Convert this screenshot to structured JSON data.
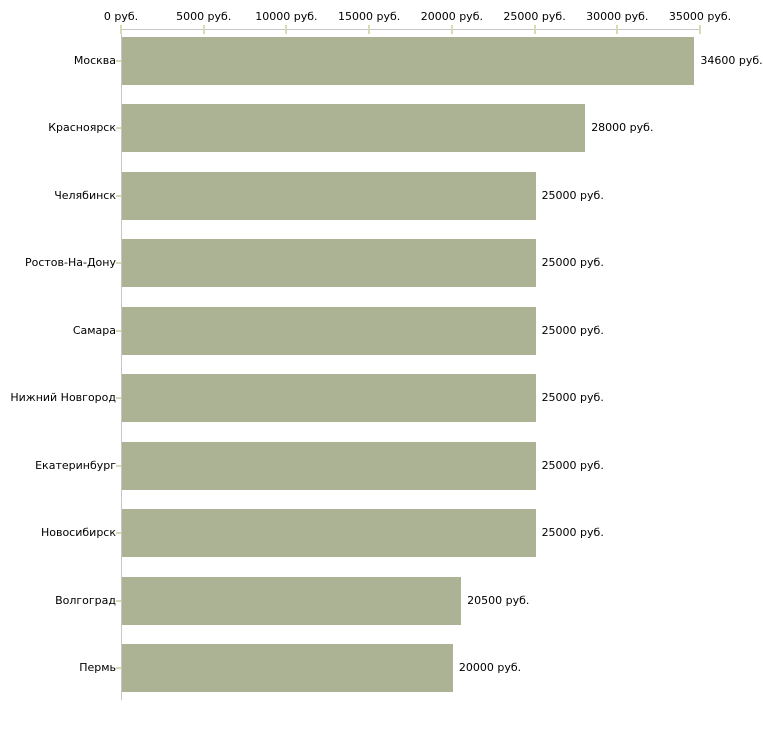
{
  "chart_data": {
    "type": "bar",
    "orientation": "horizontal",
    "categories": [
      "Москва",
      "Красноярск",
      "Челябинск",
      "Ростов-На-Дону",
      "Самара",
      "Нижний Новгород",
      "Екатеринбург",
      "Новосибирск",
      "Волгоград",
      "Пермь"
    ],
    "values": [
      34600,
      28000,
      25000,
      25000,
      25000,
      25000,
      25000,
      25000,
      20500,
      20000
    ],
    "value_labels": [
      "34600 руб.",
      "28000 руб.",
      "25000 руб.",
      "25000 руб.",
      "25000 руб.",
      "25000 руб.",
      "25000 руб.",
      "25000 руб.",
      "20500 руб.",
      "20000 руб."
    ],
    "x_axis": {
      "position": "top",
      "min": 0,
      "max": 35000,
      "ticks": [
        0,
        5000,
        10000,
        15000,
        20000,
        25000,
        30000,
        35000
      ],
      "tick_labels": [
        "0 руб.",
        "5000 руб.",
        "10000 руб.",
        "15000 руб.",
        "20000 руб.",
        "25000 руб.",
        "30000 руб.",
        "35000 руб."
      ]
    },
    "grid": false,
    "legend": false,
    "colors": {
      "bar": "#acb294",
      "axis_line": "#c6c6c6",
      "tick_mark": "#d8dab4",
      "text": "#000000",
      "background": "#ffffff"
    }
  }
}
